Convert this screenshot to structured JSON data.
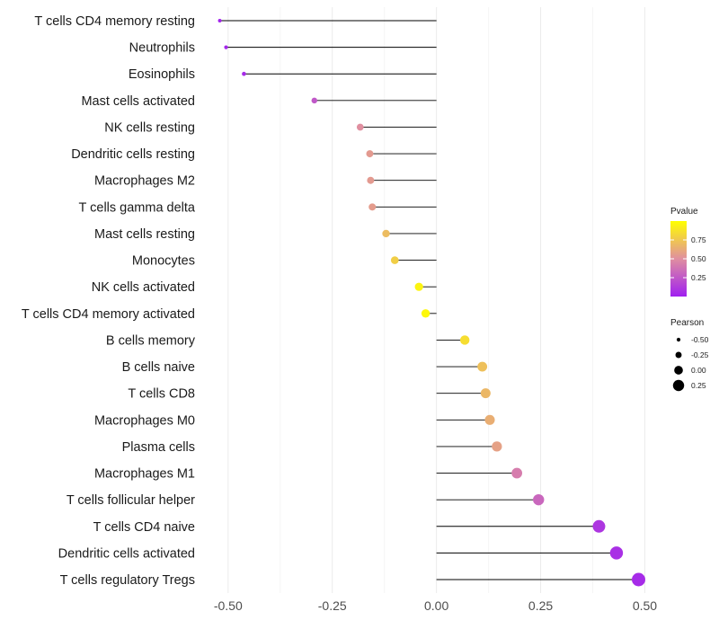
{
  "chart_data": {
    "type": "lollipop",
    "title": "",
    "xlabel": "",
    "ylabel": "",
    "xlim": [
      -0.56,
      0.54
    ],
    "xticks": [
      -0.5,
      -0.25,
      0.0,
      0.25,
      0.5
    ],
    "xtick_labels": [
      "-0.50",
      "-0.25",
      "0.00",
      "0.25",
      "0.50"
    ],
    "grid": true,
    "legend_position": "right",
    "categories": [
      "T cells CD4 memory resting",
      "Neutrophils",
      "Eosinophils",
      "Mast cells activated",
      "NK cells resting",
      "Dendritic cells resting",
      "Macrophages M2",
      "T cells gamma delta",
      "Mast cells resting",
      "Monocytes",
      "NK cells activated",
      "T cells CD4 memory activated",
      "B cells memory",
      "B cells naive",
      "T cells CD8",
      "Macrophages M0",
      "Plasma cells",
      "Macrophages M1",
      "T cells follicular helper",
      "T cells CD4 naive",
      "Dendritic cells activated",
      "T cells regulatory  Tregs"
    ],
    "pearson": [
      -0.52,
      -0.505,
      -0.462,
      -0.293,
      -0.183,
      -0.16,
      -0.158,
      -0.154,
      -0.121,
      -0.1,
      -0.042,
      -0.026,
      0.068,
      0.11,
      0.118,
      0.128,
      0.145,
      0.193,
      0.245,
      0.39,
      0.432,
      0.485
    ],
    "pvalue": [
      0.02,
      0.03,
      0.05,
      0.25,
      0.5,
      0.55,
      0.55,
      0.56,
      0.7,
      0.78,
      0.95,
      0.97,
      0.85,
      0.72,
      0.68,
      0.64,
      0.58,
      0.42,
      0.32,
      0.1,
      0.07,
      0.05
    ],
    "color_legend": {
      "title": "Pvalue",
      "ticks": [
        0.25,
        0.5,
        0.75
      ],
      "tick_labels": [
        "0.25",
        "0.50",
        "0.75"
      ],
      "low_color": "#a020f0",
      "mid_color": "#e08fa0",
      "high_color": "#ffff00"
    },
    "size_legend": {
      "title": "Pearson",
      "values": [
        -0.5,
        -0.25,
        0.0,
        0.25
      ],
      "labels": [
        "-0.50",
        "-0.25",
        "0.00",
        "0.25"
      ]
    }
  }
}
